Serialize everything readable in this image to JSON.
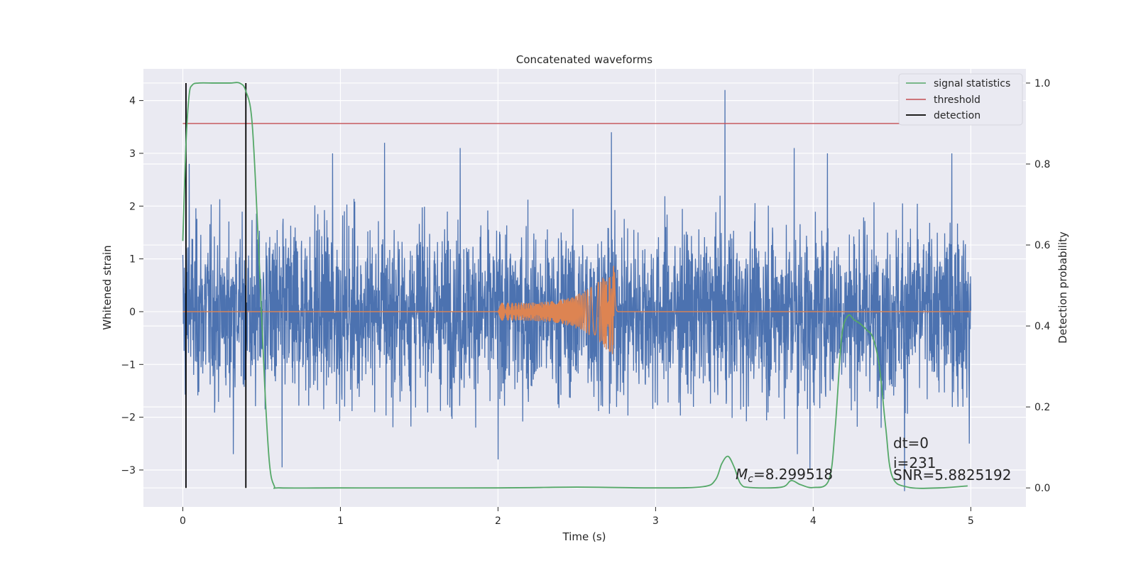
{
  "chart_data": {
    "type": "line",
    "title": "Concatenated waveforms",
    "xlabel": "Time (s)",
    "ylabel_left": "Whitened strain",
    "ylabel_right": "Detection probability",
    "xlim": [
      -0.25,
      5.35
    ],
    "ylim_left": [
      -3.7,
      4.6
    ],
    "ylim_right": [
      -0.047,
      1.035
    ],
    "xticks": [
      0,
      1,
      2,
      3,
      4,
      5
    ],
    "yticks_left": [
      -3,
      -2,
      -1,
      0,
      1,
      2,
      3,
      4
    ],
    "yticks_right": [
      0.0,
      0.2,
      0.4,
      0.6,
      0.8,
      1.0
    ],
    "xtick_labels": [
      "0",
      "1",
      "2",
      "3",
      "4",
      "5"
    ],
    "ytick_labels_left": [
      "−3",
      "−2",
      "−1",
      "0",
      "1",
      "2",
      "3",
      "4"
    ],
    "ytick_labels_right": [
      "0.0",
      "0.2",
      "0.4",
      "0.6",
      "0.8",
      "1.0"
    ],
    "grid": true,
    "legend_position": "top-right",
    "legend": [
      {
        "label": "signal statistics",
        "color": "#55a868"
      },
      {
        "label": "threshold",
        "color": "#c44e52"
      },
      {
        "label": "detection",
        "color": "#000000"
      }
    ],
    "series": [
      {
        "name": "whitened strain (noise)",
        "axis": "left",
        "color": "#4c72b0",
        "description_of_values": "dense noise, x from 0 to 5, amplitude envelope about ±2",
        "x_range": [
          0,
          5
        ],
        "envelope": [
          -2.2,
          2.2
        ],
        "notable_peaks": [
          {
            "x": 0.04,
            "y": 2.8
          },
          {
            "x": 0.95,
            "y": 3.0
          },
          {
            "x": 1.28,
            "y": 3.2
          },
          {
            "x": 1.76,
            "y": 3.1
          },
          {
            "x": 2.72,
            "y": 3.4
          },
          {
            "x": 3.44,
            "y": 4.2
          },
          {
            "x": 3.88,
            "y": 3.1
          },
          {
            "x": 4.09,
            "y": 3.0
          },
          {
            "x": 4.88,
            "y": 3.0
          },
          {
            "x": 0.32,
            "y": -2.7
          },
          {
            "x": 0.63,
            "y": -2.95
          },
          {
            "x": 2.0,
            "y": -2.8
          },
          {
            "x": 3.9,
            "y": -2.7
          },
          {
            "x": 3.98,
            "y": -3.0
          },
          {
            "x": 4.58,
            "y": -3.4
          },
          {
            "x": 4.99,
            "y": -2.5
          }
        ]
      },
      {
        "name": "template",
        "axis": "left",
        "color": "#dd8452",
        "x_range": [
          0,
          5
        ],
        "chirp_start": 2.0,
        "chirp_end": 2.74,
        "chirp_peak_amplitude": 0.9,
        "start_amplitude": 0.17
      },
      {
        "name": "signal statistics",
        "axis": "right",
        "color": "#55a868",
        "x": [
          0.0,
          0.02,
          0.04,
          0.06,
          0.1,
          0.2,
          0.3,
          0.36,
          0.4,
          0.44,
          0.48,
          0.52,
          0.55,
          0.58,
          0.62,
          1.0,
          2.0,
          2.5,
          3.0,
          3.3,
          3.38,
          3.42,
          3.46,
          3.5,
          3.54,
          3.6,
          3.8,
          3.86,
          3.92,
          4.0,
          4.1,
          4.14,
          4.18,
          4.22,
          4.26,
          4.3,
          4.34,
          4.38,
          4.42,
          4.46,
          4.5,
          4.6,
          4.8,
          4.98
        ],
        "y": [
          0.61,
          0.85,
          0.97,
          0.995,
          1.0,
          1.0,
          1.0,
          1.0,
          0.98,
          0.9,
          0.6,
          0.25,
          0.06,
          0.005,
          0.0,
          0.0,
          0.0,
          0.002,
          0.0,
          0.003,
          0.02,
          0.06,
          0.078,
          0.05,
          0.01,
          0.001,
          0.002,
          0.018,
          0.008,
          0.001,
          0.02,
          0.15,
          0.37,
          0.425,
          0.415,
          0.405,
          0.39,
          0.37,
          0.3,
          0.15,
          0.03,
          0.002,
          0.0,
          0.005
        ]
      },
      {
        "name": "threshold",
        "axis": "right",
        "color": "#c44e52",
        "x_range": [
          0,
          5.1
        ],
        "value": 0.9
      }
    ],
    "detections": [
      0.02,
      0.4
    ],
    "detection_color": "#000000",
    "annotations": [
      {
        "id": "mc",
        "prefix": "M",
        "subscript": "c",
        "suffix": "=8.299518"
      },
      {
        "id": "dt",
        "text": "dt=0"
      },
      {
        "id": "i",
        "text": "i=231"
      },
      {
        "id": "snr",
        "text": "SNR=5.8825192"
      }
    ],
    "colors": {
      "plot_background": "#eaeaf2",
      "grid": "#ffffff"
    }
  }
}
